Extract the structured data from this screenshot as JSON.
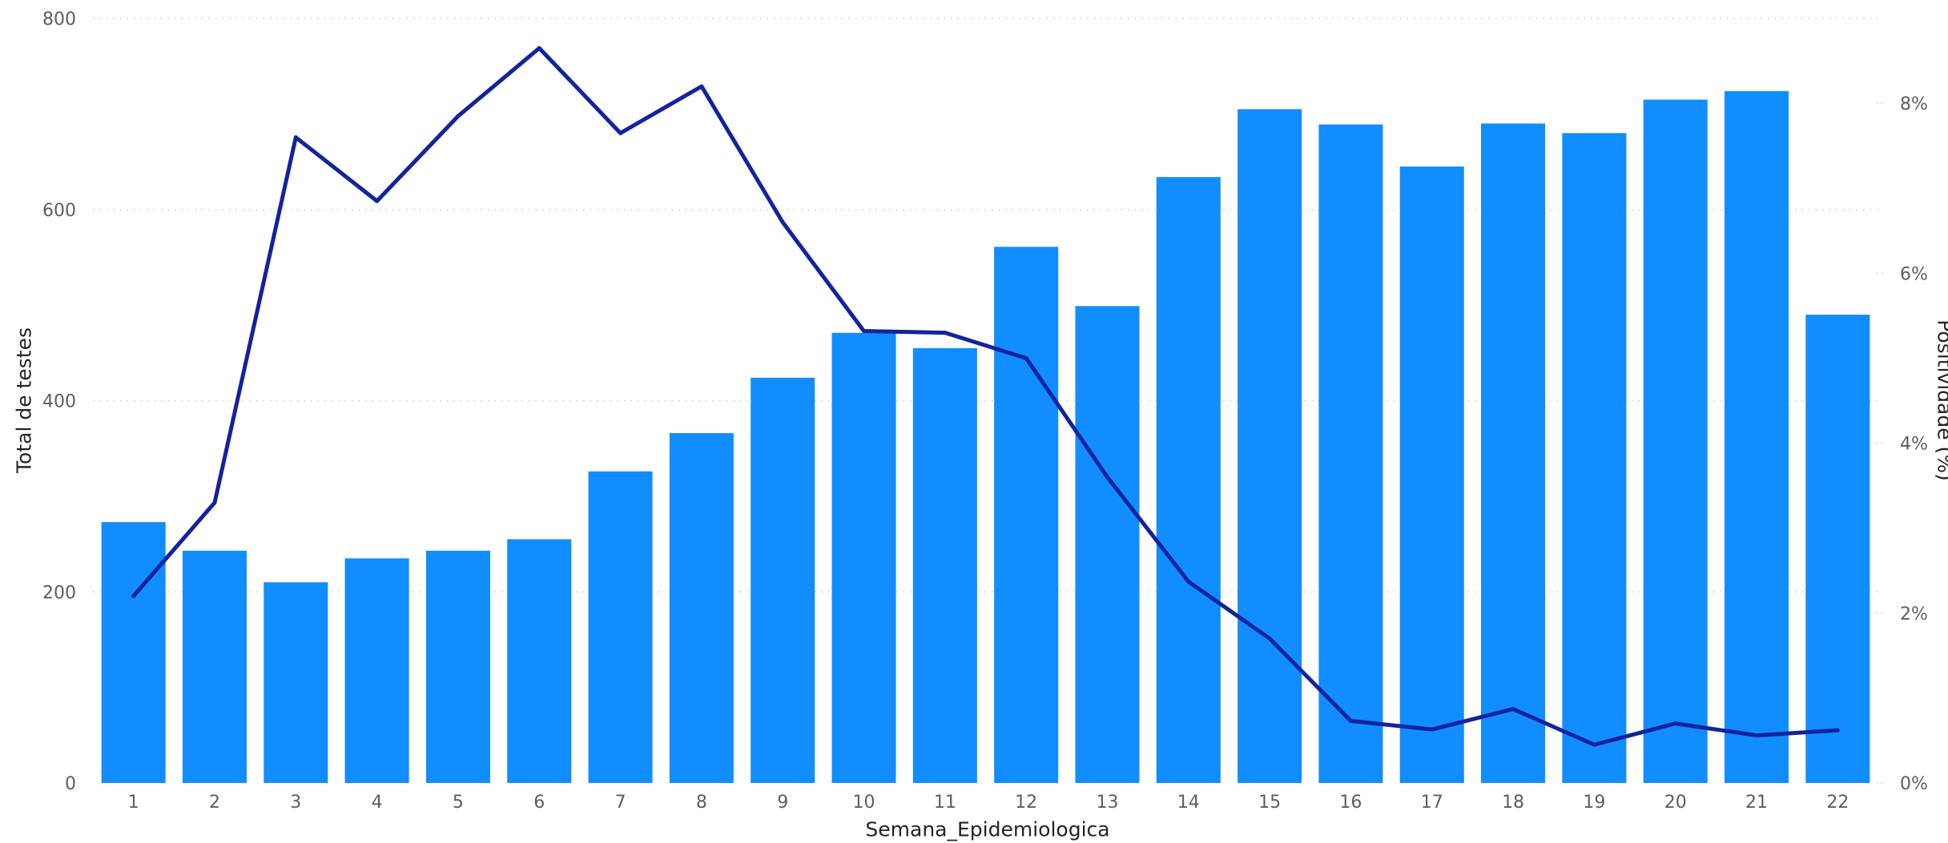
{
  "chart_data": {
    "type": "bar",
    "xlabel": "Semana_Epidemiologica",
    "ylabel": "Total de testes",
    "y2label": "Positividade (%)",
    "categories": [
      "1",
      "2",
      "3",
      "4",
      "5",
      "6",
      "7",
      "8",
      "9",
      "10",
      "11",
      "12",
      "13",
      "14",
      "15",
      "16",
      "17",
      "18",
      "19",
      "20",
      "21",
      "22"
    ],
    "series": [
      {
        "name": "Total de testes",
        "type": "bar",
        "axis": "left",
        "values": [
          273,
          243,
          210,
          235,
          243,
          255,
          326,
          366,
          424,
          471,
          455,
          561,
          499,
          634,
          705,
          689,
          645,
          690,
          680,
          715,
          724,
          490
        ]
      },
      {
        "name": "Positividade (%)",
        "type": "line",
        "axis": "right",
        "values": [
          2.2,
          3.3,
          7.6,
          6.85,
          7.85,
          8.65,
          7.65,
          8.2,
          6.6,
          5.32,
          5.3,
          5.0,
          3.6,
          2.37,
          1.7,
          0.73,
          0.63,
          0.87,
          0.45,
          0.7,
          0.56,
          0.62
        ]
      }
    ],
    "yticks": [
      "0",
      "200",
      "400",
      "600",
      "800"
    ],
    "y2ticks": [
      "0%",
      "2%",
      "4%",
      "6%",
      "8%"
    ],
    "ylim": [
      0,
      800
    ],
    "y2lim": [
      0,
      9
    ],
    "grid": true,
    "legend": "none",
    "colors": {
      "bar": "#118DFF",
      "line": "#12239E",
      "grid": "#c8c8c8",
      "tick_text": "#605E5C"
    }
  }
}
